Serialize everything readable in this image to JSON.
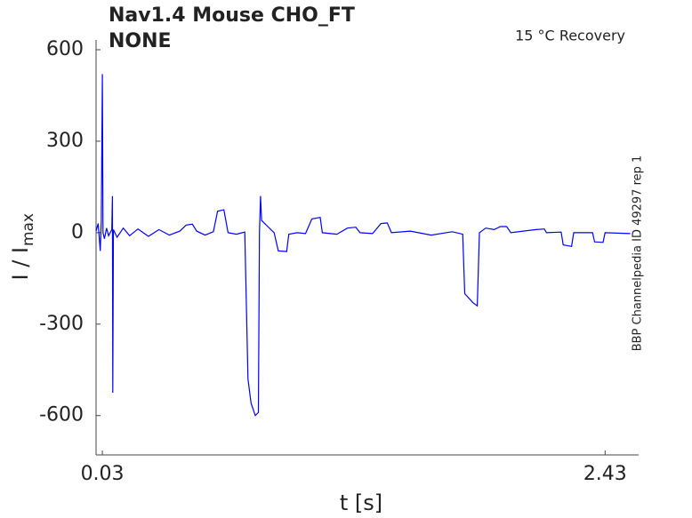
{
  "chart_data": {
    "type": "line",
    "title": "Nav1.4  Mouse  CHO_FT",
    "subtitle": "NONE",
    "annotation": "15 °C  Recovery",
    "side_note": "BBP Channelpedia ID 49297 rep 1",
    "xlabel": "t [s]",
    "ylabel": "I / I",
    "ylabel_sub": "max",
    "xlim": [
      0.0,
      2.59
    ],
    "ylim": [
      -729,
      632
    ],
    "xticks": [
      0.03,
      2.43
    ],
    "yticks": [
      -600,
      -300,
      0,
      300,
      600
    ],
    "series": [
      {
        "color": "#0000ff",
        "x": [
          0.0,
          0.01,
          0.02,
          0.025,
          0.03,
          0.033,
          0.04,
          0.05,
          0.06,
          0.075,
          0.078,
          0.08,
          0.083,
          0.1,
          0.13,
          0.16,
          0.2,
          0.25,
          0.3,
          0.35,
          0.4,
          0.43,
          0.46,
          0.48,
          0.52,
          0.56,
          0.58,
          0.61,
          0.63,
          0.67,
          0.71,
          0.725,
          0.74,
          0.76,
          0.775,
          0.78,
          0.785,
          0.79,
          0.82,
          0.85,
          0.87,
          0.91,
          0.92,
          0.96,
          1.0,
          1.03,
          1.07,
          1.08,
          1.15,
          1.2,
          1.24,
          1.26,
          1.32,
          1.36,
          1.39,
          1.41,
          1.5,
          1.6,
          1.7,
          1.75,
          1.76,
          1.8,
          1.82,
          1.83,
          1.86,
          1.9,
          1.93,
          1.96,
          1.98,
          2.1,
          2.14,
          2.15,
          2.22,
          2.23,
          2.27,
          2.28,
          2.37,
          2.38,
          2.42,
          2.43,
          2.55
        ],
        "values": [
          5,
          30,
          -60,
          40,
          520,
          0,
          -20,
          15,
          -10,
          10,
          120,
          -525,
          10,
          -15,
          15,
          -10,
          12,
          -12,
          10,
          -8,
          5,
          25,
          28,
          5,
          -8,
          3,
          70,
          75,
          0,
          -5,
          2,
          -480,
          -560,
          -600,
          -590,
          0,
          120,
          40,
          20,
          0,
          -60,
          -62,
          -5,
          0,
          -3,
          45,
          50,
          0,
          -5,
          15,
          18,
          0,
          -3,
          30,
          32,
          0,
          5,
          -8,
          3,
          -5,
          -200,
          -230,
          -240,
          0,
          15,
          10,
          20,
          20,
          0,
          10,
          12,
          0,
          2,
          -40,
          -45,
          0,
          0,
          -30,
          -32,
          0,
          -3
        ]
      }
    ]
  }
}
